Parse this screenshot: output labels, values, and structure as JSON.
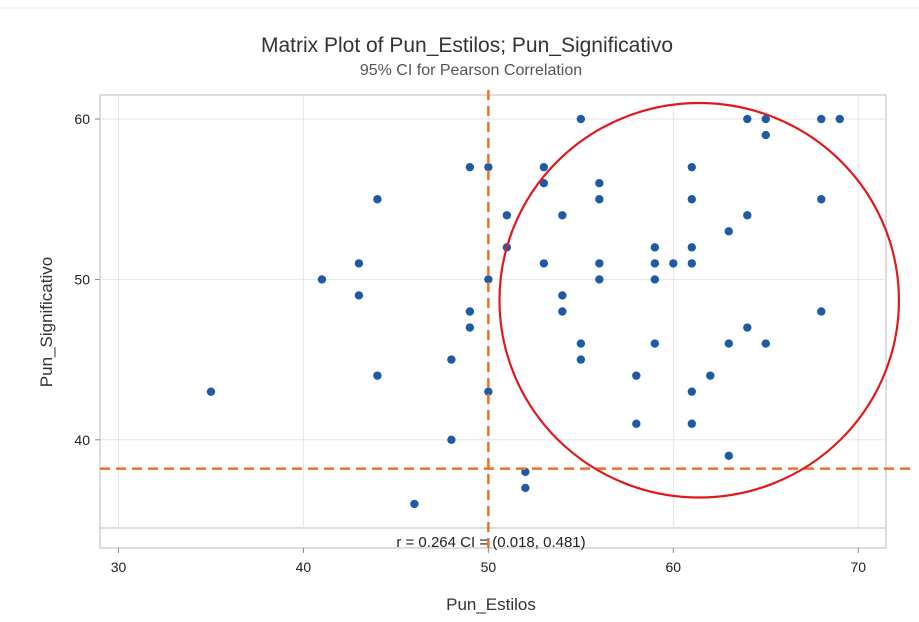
{
  "chart_data": {
    "type": "scatter",
    "title": "Matrix Plot of Pun_Estilos; Pun_Significativo",
    "subtitle": "95% CI for Pearson Correlation",
    "xlabel": "Pun_Estilos",
    "ylabel": "Pun_Significativo",
    "xlim": [
      29,
      71.5
    ],
    "ylim": [
      34.5,
      61.5
    ],
    "xticks": [
      30,
      40,
      50,
      60,
      70
    ],
    "yticks": [
      40,
      50,
      60
    ],
    "grid": true,
    "stat_label": "r = 0.264  CI = (0.018, 0.481)",
    "points": [
      {
        "x": 35,
        "y": 43
      },
      {
        "x": 41,
        "y": 50
      },
      {
        "x": 43,
        "y": 51
      },
      {
        "x": 43,
        "y": 49
      },
      {
        "x": 44,
        "y": 55
      },
      {
        "x": 44,
        "y": 44
      },
      {
        "x": 46,
        "y": 36
      },
      {
        "x": 48,
        "y": 45
      },
      {
        "x": 48,
        "y": 40
      },
      {
        "x": 49,
        "y": 57
      },
      {
        "x": 49,
        "y": 48
      },
      {
        "x": 49,
        "y": 47
      },
      {
        "x": 50,
        "y": 57
      },
      {
        "x": 50,
        "y": 50
      },
      {
        "x": 50,
        "y": 43
      },
      {
        "x": 51,
        "y": 54
      },
      {
        "x": 51,
        "y": 52
      },
      {
        "x": 52,
        "y": 38
      },
      {
        "x": 52,
        "y": 37
      },
      {
        "x": 53,
        "y": 57
      },
      {
        "x": 53,
        "y": 56
      },
      {
        "x": 53,
        "y": 51
      },
      {
        "x": 54,
        "y": 54
      },
      {
        "x": 54,
        "y": 49
      },
      {
        "x": 54,
        "y": 48
      },
      {
        "x": 55,
        "y": 60
      },
      {
        "x": 55,
        "y": 46
      },
      {
        "x": 55,
        "y": 45
      },
      {
        "x": 56,
        "y": 56
      },
      {
        "x": 56,
        "y": 55
      },
      {
        "x": 56,
        "y": 51
      },
      {
        "x": 56,
        "y": 50
      },
      {
        "x": 58,
        "y": 44
      },
      {
        "x": 58,
        "y": 41
      },
      {
        "x": 59,
        "y": 52
      },
      {
        "x": 59,
        "y": 51
      },
      {
        "x": 59,
        "y": 50
      },
      {
        "x": 59,
        "y": 46
      },
      {
        "x": 60,
        "y": 51
      },
      {
        "x": 61,
        "y": 57
      },
      {
        "x": 61,
        "y": 55
      },
      {
        "x": 61,
        "y": 52
      },
      {
        "x": 61,
        "y": 51
      },
      {
        "x": 61,
        "y": 43
      },
      {
        "x": 61,
        "y": 41
      },
      {
        "x": 62,
        "y": 44
      },
      {
        "x": 63,
        "y": 53
      },
      {
        "x": 63,
        "y": 46
      },
      {
        "x": 63,
        "y": 39
      },
      {
        "x": 64,
        "y": 60
      },
      {
        "x": 64,
        "y": 54
      },
      {
        "x": 64,
        "y": 47
      },
      {
        "x": 65,
        "y": 60
      },
      {
        "x": 65,
        "y": 59
      },
      {
        "x": 65,
        "y": 46
      },
      {
        "x": 68,
        "y": 60
      },
      {
        "x": 68,
        "y": 55
      },
      {
        "x": 68,
        "y": 48
      },
      {
        "x": 69,
        "y": 60
      }
    ],
    "reference_lines": {
      "x": 50,
      "y": 38.2
    },
    "annotation_circle": {
      "cx": 61.4,
      "cy": 48.7,
      "rx_units": 10.8,
      "ry_units": 12.3
    },
    "colors": {
      "point": "#1f5aa6",
      "reference_line": "#e8732a",
      "annotation": "#e0191c",
      "grid": "#e6e6e6",
      "frame": "#bdbdbd"
    }
  }
}
